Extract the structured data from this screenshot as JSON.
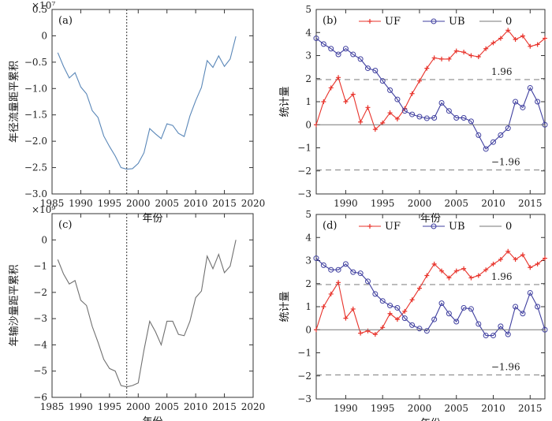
{
  "chart_data": [
    {
      "type": "line",
      "panel_label": "(a)",
      "exponent_label": "×10⁷",
      "xlabel": "年份",
      "ylabel": "年径流量距平累积",
      "xlim": [
        1985,
        2020
      ],
      "ylim": [
        -3.0,
        0.5
      ],
      "xticks": [
        1985,
        1990,
        1995,
        2000,
        2005,
        2010,
        2015,
        2020
      ],
      "yticks": [
        -3.0,
        -2.5,
        -2.0,
        -1.5,
        -1.0,
        -0.5,
        0,
        0.5
      ],
      "ytick_labels": [
        "−3.0",
        "−2.5",
        "−2.0",
        "−1.5",
        "−1.0",
        "−0.5",
        "0",
        "0.5"
      ],
      "change_point": 1998,
      "series": [
        {
          "color": "#5a87b8",
          "x": [
            1986,
            1987,
            1988,
            1989,
            1990,
            1991,
            1992,
            1993,
            1994,
            1995,
            1996,
            1997,
            1998,
            1999,
            2000,
            2001,
            2002,
            2003,
            2004,
            2005,
            2006,
            2007,
            2008,
            2009,
            2010,
            2011,
            2012,
            2013,
            2014,
            2015,
            2016,
            2017
          ],
          "values": [
            -0.32,
            -0.58,
            -0.8,
            -0.7,
            -0.97,
            -1.1,
            -1.42,
            -1.55,
            -1.9,
            -2.1,
            -2.28,
            -2.5,
            -2.53,
            -2.52,
            -2.42,
            -2.22,
            -1.76,
            -1.86,
            -1.95,
            -1.67,
            -1.7,
            -1.85,
            -1.91,
            -1.52,
            -1.23,
            -0.98,
            -0.47,
            -0.6,
            -0.38,
            -0.58,
            -0.44,
            -0.01
          ]
        }
      ]
    },
    {
      "type": "line",
      "panel_label": "(b)",
      "xlabel": "年份",
      "ylabel": "统计量",
      "xlim": [
        1986,
        2017
      ],
      "ylim": [
        -3,
        5
      ],
      "xticks": [
        1990,
        1995,
        2000,
        2005,
        2010,
        2015
      ],
      "yticks": [
        -3,
        -2,
        -1,
        0,
        1,
        2,
        3,
        4,
        5
      ],
      "ytick_labels": [
        "−3",
        "−2",
        "−1",
        "0",
        "1",
        "2",
        "3",
        "4",
        "5"
      ],
      "ref_lines": [
        1.96,
        -1.96
      ],
      "ref_labels": [
        "1.96",
        "−1.96"
      ],
      "legend": [
        "UF",
        "UB",
        "0"
      ],
      "series": [
        {
          "name": "UF",
          "color": "#e8322a",
          "marker": "plus",
          "x": [
            1986,
            1987,
            1988,
            1989,
            1990,
            1991,
            1992,
            1993,
            1994,
            1995,
            1996,
            1997,
            1998,
            1999,
            2000,
            2001,
            2002,
            2003,
            2004,
            2005,
            2006,
            2007,
            2008,
            2009,
            2010,
            2011,
            2012,
            2013,
            2014,
            2015,
            2016,
            2017
          ],
          "values": [
            0,
            1.0,
            1.6,
            2.05,
            1.0,
            1.32,
            0.12,
            0.75,
            -0.2,
            0.08,
            0.52,
            0.25,
            0.7,
            1.35,
            1.9,
            2.45,
            2.9,
            2.85,
            2.85,
            3.2,
            3.15,
            3.0,
            2.95,
            3.3,
            3.55,
            3.75,
            4.1,
            3.7,
            3.85,
            3.4,
            3.48,
            3.75
          ]
        },
        {
          "name": "UB",
          "color": "#3f3f9f",
          "marker": "circle",
          "x": [
            1986,
            1987,
            1988,
            1989,
            1990,
            1991,
            1992,
            1993,
            1994,
            1995,
            1996,
            1997,
            1998,
            1999,
            2000,
            2001,
            2002,
            2003,
            2004,
            2005,
            2006,
            2007,
            2008,
            2009,
            2010,
            2011,
            2012,
            2013,
            2014,
            2015,
            2016,
            2017
          ],
          "values": [
            3.75,
            3.5,
            3.3,
            3.05,
            3.3,
            3.05,
            2.85,
            2.45,
            2.35,
            1.9,
            1.5,
            1.1,
            0.6,
            0.45,
            0.35,
            0.28,
            0.3,
            0.95,
            0.6,
            0.3,
            0.3,
            0.15,
            -0.45,
            -1.05,
            -0.75,
            -0.45,
            -0.15,
            1.0,
            0.75,
            1.6,
            1.0,
            0
          ]
        },
        {
          "name": "0",
          "color": "#777777",
          "x": [
            1986,
            2017
          ],
          "values": [
            0,
            0
          ]
        }
      ]
    },
    {
      "type": "line",
      "panel_label": "(c)",
      "exponent_label": "×10⁹",
      "xlabel": "年份",
      "ylabel": "年输沙量距平累积",
      "xlim": [
        1985,
        2020
      ],
      "ylim": [
        -6,
        1
      ],
      "xticks": [
        1985,
        1990,
        1995,
        2000,
        2005,
        2010,
        2015,
        2020
      ],
      "yticks": [
        -6,
        -5,
        -4,
        -3,
        -2,
        -1,
        0
      ],
      "ytick_labels": [
        "−6",
        "−5",
        "−4",
        "−3",
        "−2",
        "−1",
        "0"
      ],
      "change_point": 1998,
      "series": [
        {
          "color": "#707070",
          "x": [
            1986,
            1987,
            1988,
            1989,
            1990,
            1991,
            1992,
            1993,
            1994,
            1995,
            1996,
            1997,
            1998,
            1999,
            2000,
            2001,
            2002,
            2003,
            2004,
            2005,
            2006,
            2007,
            2008,
            2009,
            2010,
            2011,
            2012,
            2013,
            2014,
            2015,
            2016,
            2017
          ],
          "values": [
            -0.75,
            -1.3,
            -1.68,
            -1.55,
            -2.3,
            -2.5,
            -3.3,
            -3.9,
            -4.55,
            -4.9,
            -5.0,
            -5.55,
            -5.6,
            -5.55,
            -5.45,
            -4.2,
            -3.1,
            -3.5,
            -4.0,
            -3.1,
            -3.1,
            -3.6,
            -3.65,
            -3.1,
            -2.2,
            -1.95,
            -0.62,
            -1.1,
            -0.55,
            -1.25,
            -1.0,
            0.0
          ]
        }
      ]
    },
    {
      "type": "line",
      "panel_label": "(d)",
      "xlabel": "年份",
      "ylabel": "统计量",
      "xlim": [
        1986,
        2017
      ],
      "ylim": [
        -3,
        5
      ],
      "xticks": [
        1990,
        1995,
        2000,
        2005,
        2010,
        2015
      ],
      "yticks": [
        -3,
        -2,
        -1,
        0,
        1,
        2,
        3,
        4,
        5
      ],
      "ytick_labels": [
        "−3",
        "−2",
        "−1",
        "0",
        "1",
        "2",
        "3",
        "4",
        "5"
      ],
      "ref_lines": [
        1.96,
        -1.96
      ],
      "ref_labels": [
        "1.96",
        "−1.96"
      ],
      "legend": [
        "UF",
        "UB",
        "0"
      ],
      "series": [
        {
          "name": "UF",
          "color": "#e8322a",
          "marker": "plus",
          "x": [
            1986,
            1987,
            1988,
            1989,
            1990,
            1991,
            1992,
            1993,
            1994,
            1995,
            1996,
            1997,
            1998,
            1999,
            2000,
            2001,
            2002,
            2003,
            2004,
            2005,
            2006,
            2007,
            2008,
            2009,
            2010,
            2011,
            2012,
            2013,
            2014,
            2015,
            2016,
            2017
          ],
          "values": [
            0,
            1.0,
            1.55,
            2.05,
            0.5,
            0.9,
            -0.15,
            -0.05,
            -0.2,
            0.1,
            0.7,
            0.45,
            0.8,
            1.3,
            1.8,
            2.35,
            2.85,
            2.55,
            2.25,
            2.55,
            2.65,
            2.25,
            2.35,
            2.6,
            2.85,
            3.05,
            3.4,
            3.05,
            3.25,
            2.7,
            2.85,
            3.1
          ]
        },
        {
          "name": "UB",
          "color": "#3f3f9f",
          "marker": "circle",
          "x": [
            1986,
            1987,
            1988,
            1989,
            1990,
            1991,
            1992,
            1993,
            1994,
            1995,
            1996,
            1997,
            1998,
            1999,
            2000,
            2001,
            2002,
            2003,
            2004,
            2005,
            2006,
            2007,
            2008,
            2009,
            2010,
            2011,
            2012,
            2013,
            2014,
            2015,
            2016,
            2017
          ],
          "values": [
            3.1,
            2.8,
            2.6,
            2.6,
            2.85,
            2.5,
            2.45,
            2.1,
            1.55,
            1.25,
            1.05,
            0.95,
            0.5,
            0.2,
            0.05,
            -0.05,
            0.45,
            1.15,
            0.7,
            0.35,
            0.95,
            0.9,
            0.25,
            -0.25,
            -0.25,
            0.15,
            -0.2,
            1.0,
            0.7,
            1.6,
            1.0,
            0
          ]
        },
        {
          "name": "0",
          "color": "#777777",
          "x": [
            1986,
            2017
          ],
          "values": [
            0,
            0
          ]
        }
      ]
    }
  ]
}
